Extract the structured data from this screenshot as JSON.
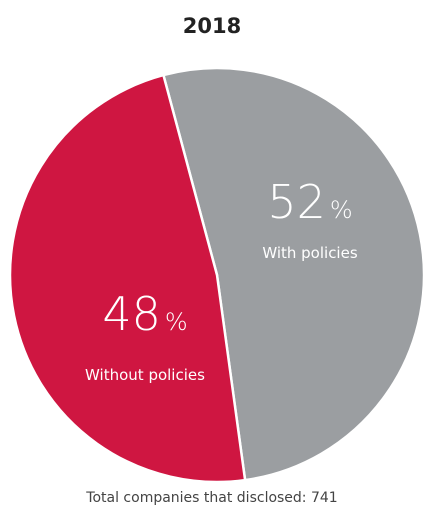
{
  "chart_data": {
    "type": "pie",
    "title": "2018",
    "slices": [
      {
        "label": "With policies",
        "value": 52,
        "display": "52",
        "unit": "%",
        "color": "#9b9ea1"
      },
      {
        "label": "Without policies",
        "value": 48,
        "display": "48",
        "unit": "%",
        "color": "#cf1641"
      }
    ],
    "start_angle_deg": -15,
    "footer": "Total companies that disclosed: 741"
  }
}
